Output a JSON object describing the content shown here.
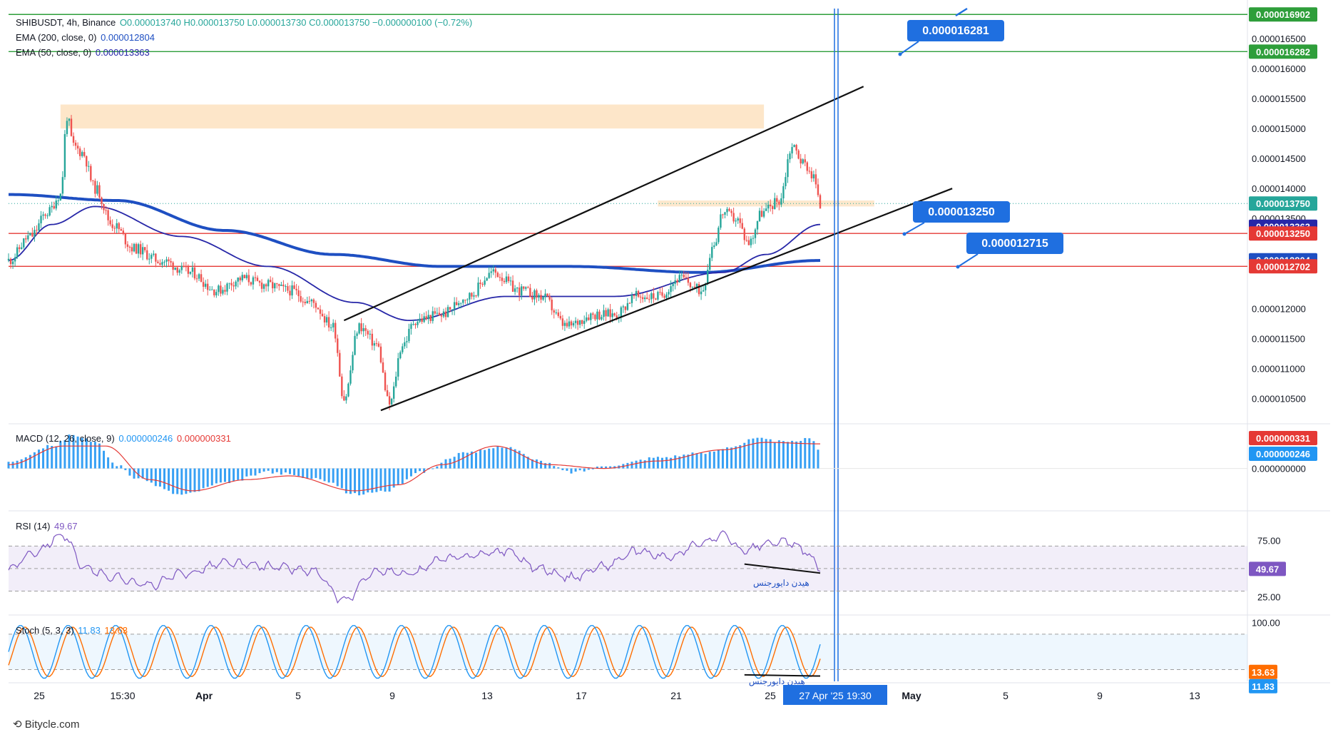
{
  "header": {
    "symbol": "SHIBUSDT, 4h, Binance",
    "ohlc": "O0.000013740 H0.000013750 L0.000013730 C0.000013750 −0.000000100 (−0.72%)",
    "ema200_label": "EMA (200, close, 0)",
    "ema200_value": "0.000012804",
    "ema50_label": "EMA (50, close, 0)",
    "ema50_value": "0.000013363"
  },
  "colors": {
    "up": "#26a69a",
    "down": "#ef5350",
    "ema200": "#1e4fc2",
    "ema50": "#2727a8",
    "resistance": "#e53935",
    "green_line": "#2e9e3a",
    "zone": "#fde2c0",
    "callout": "#1f6fe0",
    "macd_hist": "#2196f3",
    "signal": "#e53935",
    "rsi": "#7e57c2",
    "stoch_k": "#2196f3",
    "stoch_d": "#ff6d00"
  },
  "chart_data": [
    {
      "type": "candlestick",
      "title": "SHIBUSDT, 4h, Binance",
      "ylim": [
        1.01e-05,
        1.7e-05
      ],
      "x_ticks": [
        "25",
        "15:30",
        "Apr",
        "5",
        "9",
        "13",
        "17",
        "21",
        "25",
        "May",
        "5",
        "9",
        "13"
      ],
      "crosshair_label": "27 Apr '25   19:30",
      "y_ticks": [
        "0.000016500",
        "0.000016000",
        "0.000015500",
        "0.000015000",
        "0.000014500",
        "0.000014000",
        "0.000013500",
        "0.000012000",
        "0.000011500",
        "0.000011000",
        "0.000010500"
      ],
      "price_badges": [
        {
          "label": "0.000016902",
          "value": 1.6902e-05,
          "color": "#2e9e3a"
        },
        {
          "label": "0.000016282",
          "value": 1.6282e-05,
          "color": "#2e9e3a"
        },
        {
          "label": "0.000013750",
          "value": 1.375e-05,
          "color": "#26a69a"
        },
        {
          "label": "0.000013363",
          "value": 1.3363e-05,
          "color": "#2727a8"
        },
        {
          "label": "0.000013250",
          "value": 1.325e-05,
          "color": "#e53935"
        },
        {
          "label": "0.000012804",
          "value": 1.2804e-05,
          "color": "#1e4fc2"
        },
        {
          "label": "0.000012702",
          "value": 1.2702e-05,
          "color": "#e53935"
        }
      ],
      "horizontal_lines": [
        {
          "value": 1.6902e-05,
          "color": "#2e9e3a"
        },
        {
          "value": 1.6282e-05,
          "color": "#2e9e3a"
        },
        {
          "value": 1.325e-05,
          "color": "#e53935"
        },
        {
          "value": 1.2702e-05,
          "color": "#e53935"
        }
      ],
      "callouts": [
        "0.000016281",
        "0.000013250",
        "0.000012715"
      ],
      "series_close_anchors": [
        [
          0,
          1.28e-05
        ],
        [
          10,
          1.32e-05
        ],
        [
          18,
          1.36e-05
        ],
        [
          24,
          1.39e-05
        ],
        [
          27,
          1.52e-05
        ],
        [
          30,
          1.47e-05
        ],
        [
          34,
          1.46e-05
        ],
        [
          40,
          1.4e-05
        ],
        [
          48,
          1.34e-05
        ],
        [
          58,
          1.3e-05
        ],
        [
          70,
          1.28e-05
        ],
        [
          84,
          1.26e-05
        ],
        [
          96,
          1.23e-05
        ],
        [
          108,
          1.25e-05
        ],
        [
          118,
          1.24e-05
        ],
        [
          130,
          1.23e-05
        ],
        [
          140,
          1.21e-05
        ],
        [
          150,
          1.17e-05
        ],
        [
          155,
          1.05e-05
        ],
        [
          162,
          1.17e-05
        ],
        [
          170,
          1.14e-05
        ],
        [
          176,
          1.04e-05
        ],
        [
          182,
          1.14e-05
        ],
        [
          188,
          1.18e-05
        ],
        [
          200,
          1.19e-05
        ],
        [
          212,
          1.22e-05
        ],
        [
          224,
          1.26e-05
        ],
        [
          236,
          1.23e-05
        ],
        [
          246,
          1.22e-05
        ],
        [
          258,
          1.17e-05
        ],
        [
          270,
          1.19e-05
        ],
        [
          280,
          1.19e-05
        ],
        [
          290,
          1.22e-05
        ],
        [
          300,
          1.22e-05
        ],
        [
          310,
          1.25e-05
        ],
        [
          320,
          1.23e-05
        ],
        [
          326,
          1.31e-05
        ],
        [
          330,
          1.36e-05
        ],
        [
          336,
          1.35e-05
        ],
        [
          342,
          1.31e-05
        ],
        [
          348,
          1.36e-05
        ],
        [
          356,
          1.38e-05
        ],
        [
          362,
          1.47e-05
        ],
        [
          368,
          1.44e-05
        ],
        [
          372,
          1.42e-05
        ],
        [
          375,
          1.37e-05
        ]
      ],
      "ema200_anchors": [
        [
          0,
          1.39e-05
        ],
        [
          50,
          1.38e-05
        ],
        [
          100,
          1.33e-05
        ],
        [
          150,
          1.29e-05
        ],
        [
          200,
          1.27e-05
        ],
        [
          260,
          1.27e-05
        ],
        [
          320,
          1.26e-05
        ],
        [
          375,
          1.28e-05
        ]
      ],
      "ema50_anchors": [
        [
          0,
          1.28e-05
        ],
        [
          20,
          1.34e-05
        ],
        [
          40,
          1.37e-05
        ],
        [
          80,
          1.32e-05
        ],
        [
          120,
          1.27e-05
        ],
        [
          160,
          1.21e-05
        ],
        [
          185,
          1.18e-05
        ],
        [
          230,
          1.22e-05
        ],
        [
          280,
          1.22e-05
        ],
        [
          330,
          1.26e-05
        ],
        [
          350,
          1.29e-05
        ],
        [
          375,
          1.34e-05
        ]
      ],
      "channel": {
        "upper": [
          [
            155,
            1.18e-05
          ],
          [
            395,
            1.57e-05
          ]
        ],
        "lower": [
          [
            172,
            1.03e-05
          ],
          [
            436,
            1.4e-05
          ]
        ]
      },
      "zones": [
        {
          "from": 1.5e-05,
          "to": 1.54e-05
        },
        {
          "from": 1.37e-05,
          "to": 1.38e-05
        }
      ]
    },
    {
      "type": "bar",
      "title": "MACD (12, 26, close, 9)",
      "macd_value": "0.000000246",
      "signal_value": "0.000000331",
      "ylim": [
        -5.5e-07,
        5.8e-07
      ],
      "y_ticks": [
        "0.000000000"
      ],
      "badges": [
        {
          "label": "0.000000331",
          "color": "#e53935"
        },
        {
          "label": "0.000000246",
          "color": "#2196f3"
        }
      ],
      "hist_anchors": [
        [
          0,
          1e-07
        ],
        [
          20,
          3e-07
        ],
        [
          30,
          4.5e-07
        ],
        [
          40,
          3.5e-07
        ],
        [
          50,
          5e-08
        ],
        [
          60,
          -1.5e-07
        ],
        [
          80,
          -3.5e-07
        ],
        [
          100,
          -2e-07
        ],
        [
          120,
          -5e-08
        ],
        [
          145,
          -1.5e-07
        ],
        [
          160,
          -3.5e-07
        ],
        [
          175,
          -3e-07
        ],
        [
          190,
          -5e-08
        ],
        [
          210,
          2e-07
        ],
        [
          230,
          3e-07
        ],
        [
          245,
          1e-07
        ],
        [
          260,
          -5e-08
        ],
        [
          280,
          5e-08
        ],
        [
          300,
          1.5e-07
        ],
        [
          320,
          2e-07
        ],
        [
          335,
          3e-07
        ],
        [
          345,
          4e-07
        ],
        [
          360,
          3.5e-07
        ],
        [
          370,
          4e-07
        ],
        [
          375,
          2.5e-07
        ]
      ],
      "signal_anchors": [
        [
          0,
          5e-08
        ],
        [
          25,
          3e-07
        ],
        [
          45,
          3e-07
        ],
        [
          65,
          -1.5e-07
        ],
        [
          85,
          -3e-07
        ],
        [
          110,
          -1.5e-07
        ],
        [
          130,
          -1e-07
        ],
        [
          160,
          -3e-07
        ],
        [
          180,
          -2.2e-07
        ],
        [
          200,
          5e-08
        ],
        [
          225,
          3e-07
        ],
        [
          250,
          5e-08
        ],
        [
          275,
          0.0
        ],
        [
          300,
          1e-07
        ],
        [
          330,
          2.5e-07
        ],
        [
          350,
          3.5e-07
        ],
        [
          375,
          3.3e-07
        ]
      ]
    },
    {
      "type": "line",
      "title": "RSI (14)",
      "value": "49.67",
      "ylim": [
        10,
        100
      ],
      "y_ticks": [
        "75.00",
        "25.00"
      ],
      "band": [
        30,
        70
      ],
      "divergence_label": "هیدن دایورجنس",
      "anchors": [
        [
          0,
          50
        ],
        [
          12,
          65
        ],
        [
          25,
          80
        ],
        [
          35,
          50
        ],
        [
          50,
          42
        ],
        [
          65,
          35
        ],
        [
          80,
          45
        ],
        [
          100,
          55
        ],
        [
          120,
          52
        ],
        [
          140,
          48
        ],
        [
          155,
          22
        ],
        [
          170,
          48
        ],
        [
          185,
          45
        ],
        [
          200,
          58
        ],
        [
          215,
          62
        ],
        [
          230,
          66
        ],
        [
          245,
          50
        ],
        [
          260,
          42
        ],
        [
          275,
          52
        ],
        [
          290,
          65
        ],
        [
          305,
          60
        ],
        [
          320,
          72
        ],
        [
          330,
          80
        ],
        [
          340,
          65
        ],
        [
          350,
          72
        ],
        [
          360,
          74
        ],
        [
          368,
          65
        ],
        [
          375,
          50
        ]
      ],
      "divergence": [
        [
          340,
          54
        ],
        [
          375,
          46
        ]
      ]
    },
    {
      "type": "line",
      "title": "Stoch (5, 3, 3)",
      "k_value": "11.83",
      "d_value": "13.63",
      "ylim": [
        0,
        110
      ],
      "y_ticks": [
        "100.00"
      ],
      "band": [
        20,
        80
      ],
      "divergence_label": "هیدن دایورجنس",
      "badges": [
        {
          "label": "13.63",
          "color": "#ff6d00"
        },
        {
          "label": "11.83",
          "color": "#2196f3"
        }
      ],
      "cycle_period": 22,
      "divergence": [
        [
          340,
          11
        ],
        [
          375,
          9
        ]
      ]
    }
  ],
  "footer": {
    "brand": "Bitycle.com"
  }
}
